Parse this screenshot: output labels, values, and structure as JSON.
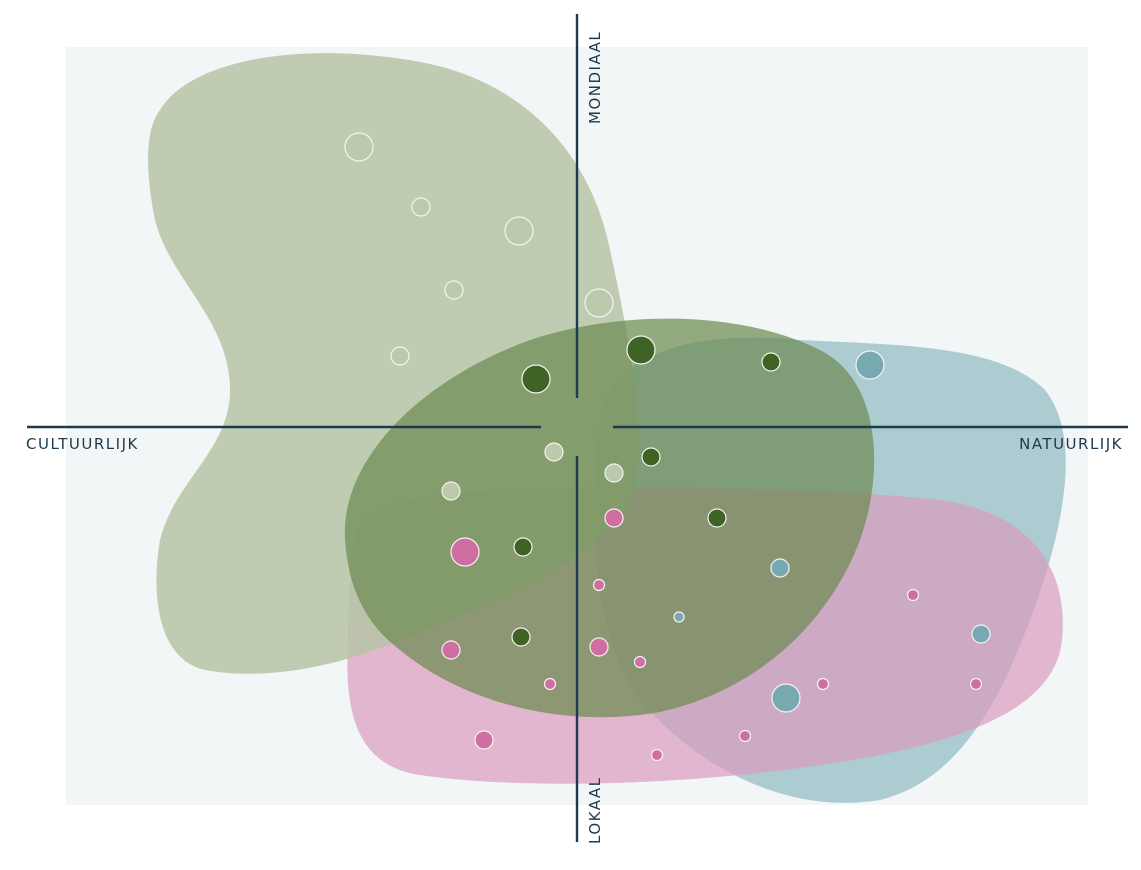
{
  "axes": {
    "top": "MONDIAAL",
    "bottom": "LOKAAL",
    "left": "CULTUURLIJK",
    "right": "NATUURLIJK"
  },
  "colors": {
    "background": "#f3f6f6",
    "axis": "#1d3a4e",
    "light_green_area": "#b5c4a6",
    "dark_green_area": "#6e8a52",
    "blue_area": "#8fbac3",
    "pink_area": "#d99bbd",
    "light_green_dot": "#bcc9ad",
    "dark_green_dot": "#3f6325",
    "blue_dot": "#78a8b2",
    "pink_dot": "#cf6ea2"
  },
  "groups": [
    "light_green",
    "dark_green",
    "blue",
    "pink"
  ]
}
